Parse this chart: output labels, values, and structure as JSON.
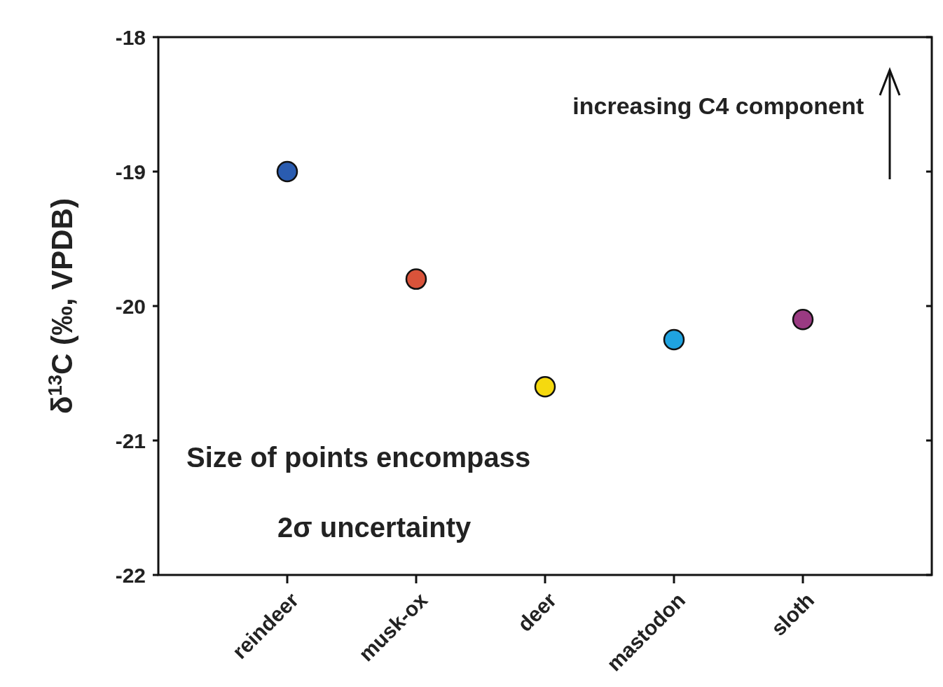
{
  "chart_data": {
    "type": "scatter",
    "ylabel": "δ$^{13}$C (‰, VPDB)",
    "categories": [
      "reindeer",
      "musk-ox",
      "deer",
      "mastodon",
      "sloth"
    ],
    "values": [
      -19.0,
      -19.8,
      -20.6,
      -20.25,
      -20.1
    ],
    "colors": [
      "#2a5cb0",
      "#d9533a",
      "#f5d90f",
      "#1fa3e0",
      "#9a3a82"
    ],
    "ylim": [
      -22,
      -18
    ],
    "yticks": [
      -22,
      -21,
      -20,
      -19,
      -18
    ],
    "marker": "circle",
    "grid": false,
    "annotations": [
      "increasing C4 component",
      "Size of points encompass",
      "2σ uncertainty"
    ]
  }
}
